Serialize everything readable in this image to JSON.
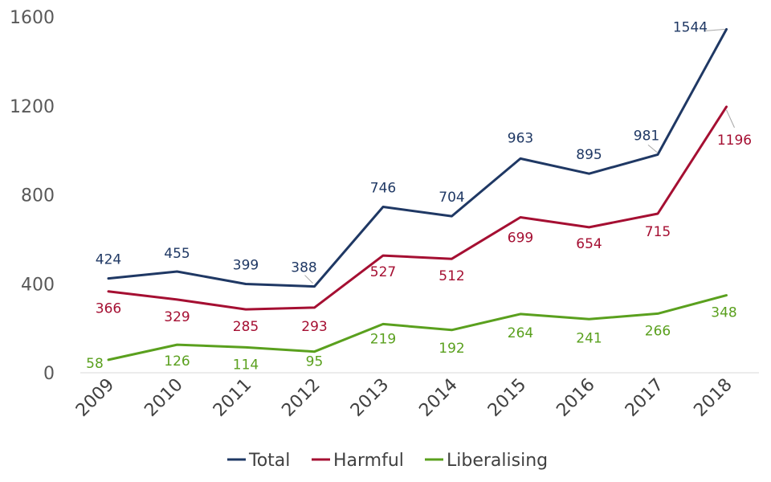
{
  "chart_data": {
    "type": "line",
    "categories": [
      "2009",
      "2010",
      "2011",
      "2012",
      "2013",
      "2014",
      "2015",
      "2016",
      "2017",
      "2018"
    ],
    "ylim": [
      0,
      1600
    ],
    "yticks": [
      0,
      400,
      800,
      1200,
      1600
    ],
    "grid": false,
    "legend_position": "bottom",
    "series": [
      {
        "name": "Total",
        "color": "#1f3864",
        "values": [
          424,
          455,
          399,
          388,
          746,
          704,
          963,
          895,
          981,
          1544
        ]
      },
      {
        "name": "Harmful",
        "color": "#a50f32",
        "values": [
          366,
          329,
          285,
          293,
          527,
          512,
          699,
          654,
          715,
          1196
        ]
      },
      {
        "name": "Liberalising",
        "color": "#5aa01e",
        "values": [
          58,
          126,
          114,
          95,
          219,
          192,
          264,
          241,
          266,
          348
        ]
      }
    ]
  },
  "legend": {
    "items": [
      {
        "label": "Total",
        "color": "#1f3864"
      },
      {
        "label": "Harmful",
        "color": "#a50f32"
      },
      {
        "label": "Liberalising",
        "color": "#5aa01e"
      }
    ]
  }
}
